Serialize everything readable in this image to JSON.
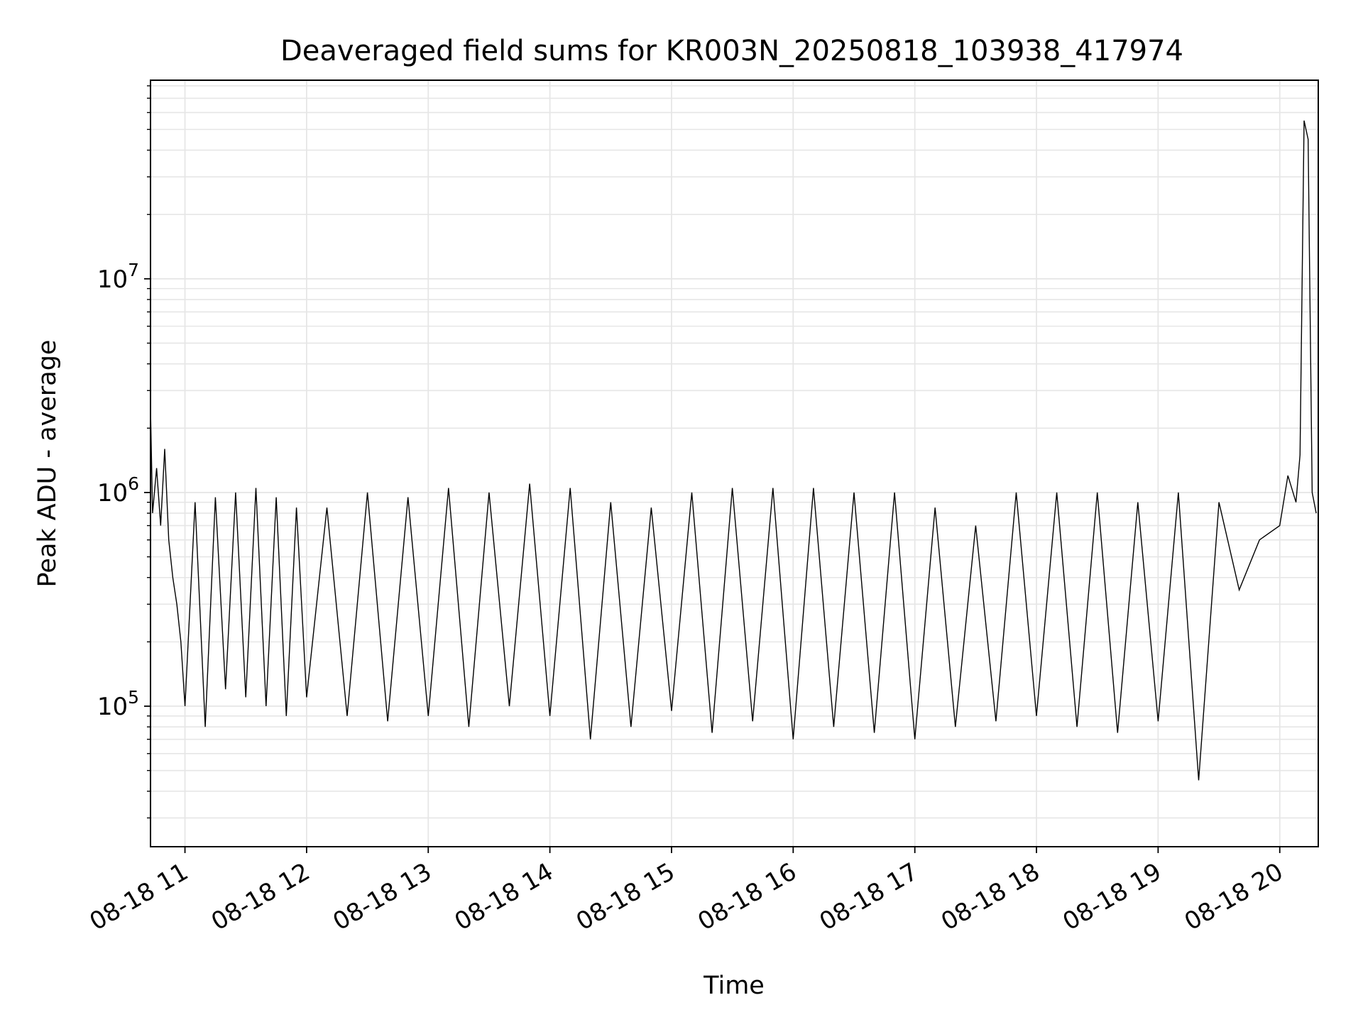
{
  "chart_data": {
    "type": "line",
    "title": "Deaveraged field sums for KR003N_20250818_103938_417974",
    "xlabel": "Time",
    "ylabel": "Peak ADU - average",
    "yscale": "log",
    "ylim": [
      22000,
      85000000
    ],
    "xlim": [
      "2025-08-18 10:43",
      "2025-08-18 20:19"
    ],
    "grid": true,
    "line_color": "#000000",
    "x_ticks": [
      {
        "label": "08-18 11",
        "value": "2025-08-18 11:00"
      },
      {
        "label": "08-18 12",
        "value": "2025-08-18 12:00"
      },
      {
        "label": "08-18 13",
        "value": "2025-08-18 13:00"
      },
      {
        "label": "08-18 14",
        "value": "2025-08-18 14:00"
      },
      {
        "label": "08-18 15",
        "value": "2025-08-18 15:00"
      },
      {
        "label": "08-18 16",
        "value": "2025-08-18 16:00"
      },
      {
        "label": "08-18 17",
        "value": "2025-08-18 17:00"
      },
      {
        "label": "08-18 18",
        "value": "2025-08-18 18:00"
      },
      {
        "label": "08-18 19",
        "value": "2025-08-18 19:00"
      },
      {
        "label": "08-18 20",
        "value": "2025-08-18 20:00"
      }
    ],
    "y_ticks": [
      {
        "base": "10",
        "exp": "5",
        "value": 100000
      },
      {
        "base": "10",
        "exp": "6",
        "value": 1000000
      },
      {
        "base": "10",
        "exp": "7",
        "value": 10000000
      }
    ],
    "series": [
      {
        "x": [
          "2025-08-18 10:43",
          "2025-08-18 10:44",
          "2025-08-18 10:46",
          "2025-08-18 10:48",
          "2025-08-18 10:50",
          "2025-08-18 10:52",
          "2025-08-18 10:54",
          "2025-08-18 10:56",
          "2025-08-18 10:58",
          "2025-08-18 11:00",
          "2025-08-18 11:05",
          "2025-08-18 11:10",
          "2025-08-18 11:15",
          "2025-08-18 11:20",
          "2025-08-18 11:25",
          "2025-08-18 11:30",
          "2025-08-18 11:35",
          "2025-08-18 11:40",
          "2025-08-18 11:45",
          "2025-08-18 11:50",
          "2025-08-18 11:55",
          "2025-08-18 12:00",
          "2025-08-18 12:10",
          "2025-08-18 12:20",
          "2025-08-18 12:30",
          "2025-08-18 12:40",
          "2025-08-18 12:50",
          "2025-08-18 13:00",
          "2025-08-18 13:10",
          "2025-08-18 13:20",
          "2025-08-18 13:30",
          "2025-08-18 13:40",
          "2025-08-18 13:50",
          "2025-08-18 14:00",
          "2025-08-18 14:10",
          "2025-08-18 14:20",
          "2025-08-18 14:30",
          "2025-08-18 14:40",
          "2025-08-18 14:50",
          "2025-08-18 15:00",
          "2025-08-18 15:10",
          "2025-08-18 15:20",
          "2025-08-18 15:30",
          "2025-08-18 15:40",
          "2025-08-18 15:50",
          "2025-08-18 16:00",
          "2025-08-18 16:10",
          "2025-08-18 16:20",
          "2025-08-18 16:30",
          "2025-08-18 16:40",
          "2025-08-18 16:50",
          "2025-08-18 17:00",
          "2025-08-18 17:10",
          "2025-08-18 17:20",
          "2025-08-18 17:30",
          "2025-08-18 17:40",
          "2025-08-18 17:50",
          "2025-08-18 18:00",
          "2025-08-18 18:10",
          "2025-08-18 18:20",
          "2025-08-18 18:30",
          "2025-08-18 18:40",
          "2025-08-18 18:50",
          "2025-08-18 19:00",
          "2025-08-18 19:10",
          "2025-08-18 19:20",
          "2025-08-18 19:30",
          "2025-08-18 19:40",
          "2025-08-18 19:50",
          "2025-08-18 20:00",
          "2025-08-18 20:04",
          "2025-08-18 20:08",
          "2025-08-18 20:10",
          "2025-08-18 20:12",
          "2025-08-18 20:14",
          "2025-08-18 20:16",
          "2025-08-18 20:18"
        ],
        "y": [
          2500000,
          800000,
          1300000,
          700000,
          1600000,
          600000,
          400000,
          300000,
          200000,
          100000,
          900000,
          80000,
          950000,
          120000,
          1000000,
          110000,
          1050000,
          100000,
          950000,
          90000,
          850000,
          110000,
          850000,
          90000,
          1000000,
          85000,
          950000,
          90000,
          1050000,
          80000,
          1000000,
          100000,
          1100000,
          90000,
          1050000,
          70000,
          900000,
          80000,
          850000,
          95000,
          1000000,
          75000,
          1050000,
          85000,
          1050000,
          70000,
          1050000,
          80000,
          1000000,
          75000,
          1000000,
          70000,
          850000,
          80000,
          700000,
          85000,
          1000000,
          90000,
          1000000,
          80000,
          1000000,
          75000,
          900000,
          85000,
          1000000,
          45000,
          900000,
          350000,
          600000,
          700000,
          1200000,
          900000,
          1500000,
          55000000,
          45000000,
          1000000,
          800000
        ]
      }
    ]
  }
}
